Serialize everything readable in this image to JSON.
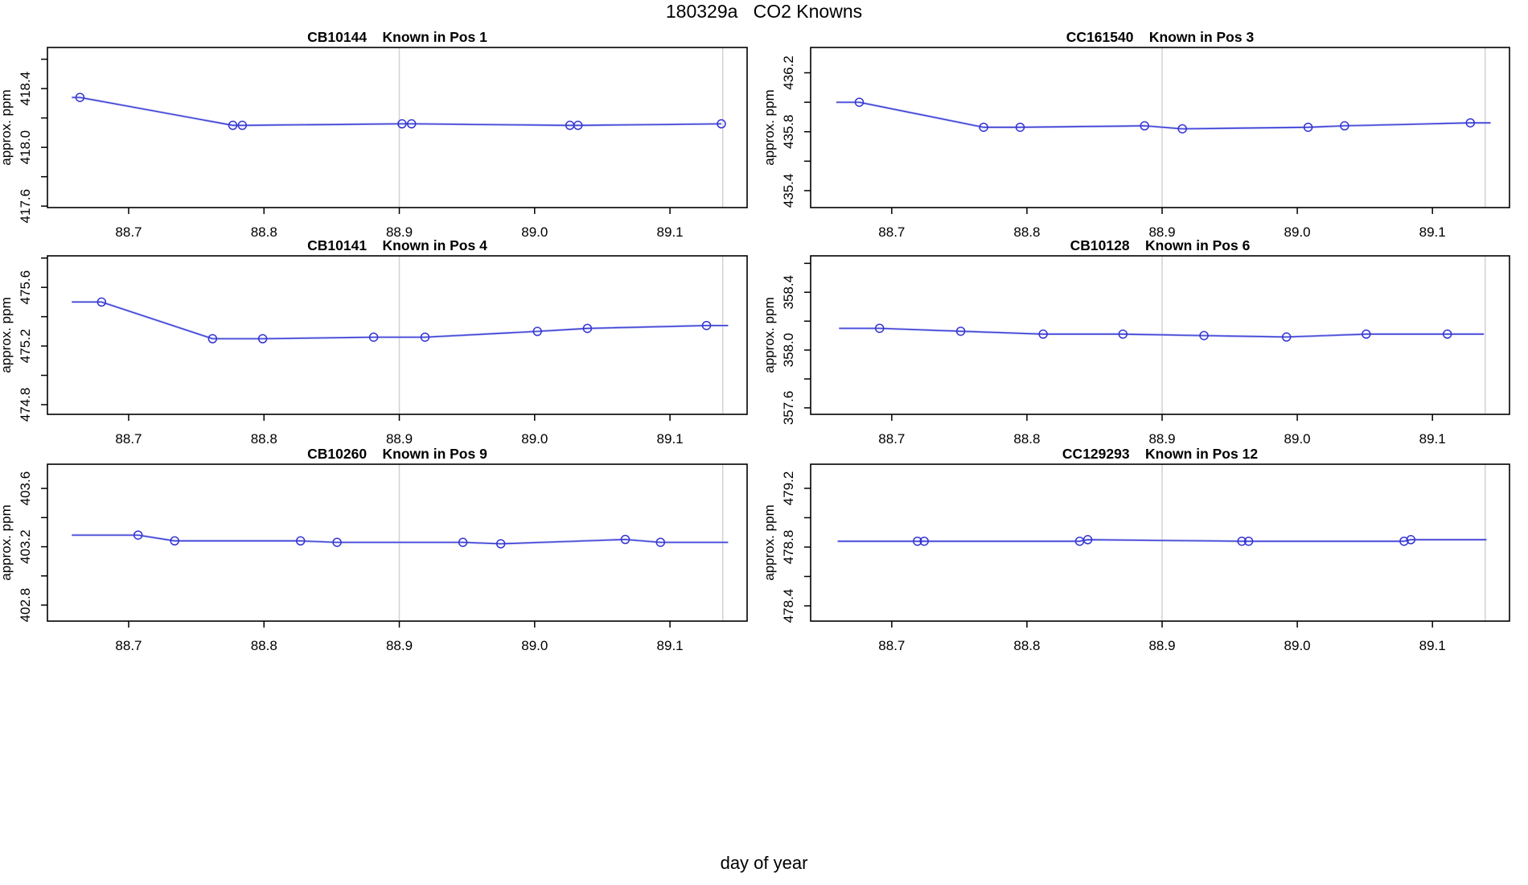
{
  "title": "180329a   CO2 Knowns",
  "xlabel": "day of year",
  "colors": {
    "series": "#3434d3",
    "series_halo": "#aab2ef",
    "vline": "#d2d2d2",
    "box": "#000000"
  },
  "chart_data": [
    {
      "type": "line",
      "sample_id": "CB10144",
      "position": "Known in Pos 1",
      "title": "CB10144    Known in Pos 1",
      "ylabel": "approx. ppm",
      "xlim": [
        88.64,
        89.157
      ],
      "ylim": [
        417.59,
        418.68
      ],
      "xticks": [
        [
          88.7,
          "88.7"
        ],
        [
          88.8,
          "88.8"
        ],
        [
          88.9,
          "88.9"
        ],
        [
          89.0,
          "89.0"
        ],
        [
          89.1,
          "89.1"
        ]
      ],
      "yticks": [
        [
          417.6,
          "417.6"
        ],
        [
          417.8,
          ""
        ],
        [
          418.0,
          "418.0"
        ],
        [
          418.2,
          ""
        ],
        [
          418.4,
          "418.4"
        ],
        [
          418.6,
          ""
        ]
      ],
      "vlines": [
        88.9,
        89.139
      ],
      "x": [
        88.664,
        88.777,
        88.784,
        88.902,
        88.909,
        89.026,
        89.032,
        89.138
      ],
      "y": [
        418.34,
        418.15,
        418.15,
        418.16,
        418.16,
        418.15,
        418.15,
        418.16
      ],
      "lead_x": 88.658,
      "trail_x": null
    },
    {
      "type": "line",
      "sample_id": "CC161540",
      "position": "Known in Pos 3",
      "title": "CC161540    Known in Pos 3",
      "ylabel": "approx. ppm",
      "xlim": [
        88.64,
        89.157
      ],
      "ylim": [
        435.285,
        436.372
      ],
      "xticks": [
        [
          88.7,
          "88.7"
        ],
        [
          88.8,
          "88.8"
        ],
        [
          88.9,
          "88.9"
        ],
        [
          89.0,
          "89.0"
        ],
        [
          89.1,
          "89.1"
        ]
      ],
      "yticks": [
        [
          435.4,
          "435.4"
        ],
        [
          435.6,
          ""
        ],
        [
          435.8,
          "435.8"
        ],
        [
          436.0,
          ""
        ],
        [
          436.2,
          "436.2"
        ]
      ],
      "vlines": [
        88.9,
        89.139
      ],
      "x": [
        88.676,
        88.768,
        88.795,
        88.887,
        88.915,
        89.008,
        89.035,
        89.128
      ],
      "y": [
        436.0,
        435.83,
        435.83,
        435.84,
        435.82,
        435.83,
        435.84,
        435.86
      ],
      "lead_x": 88.659,
      "trail_x": 89.143
    },
    {
      "type": "line",
      "sample_id": "CB10141",
      "position": "Known in Pos 4",
      "title": "CB10141    Known in Pos 4",
      "ylabel": "approx. ppm",
      "xlim": [
        88.64,
        89.157
      ],
      "ylim": [
        474.734,
        475.815
      ],
      "xticks": [
        [
          88.7,
          "88.7"
        ],
        [
          88.8,
          "88.8"
        ],
        [
          88.9,
          "88.9"
        ],
        [
          89.0,
          "89.0"
        ],
        [
          89.1,
          "89.1"
        ]
      ],
      "yticks": [
        [
          474.8,
          "474.8"
        ],
        [
          475.0,
          ""
        ],
        [
          475.2,
          "475.2"
        ],
        [
          475.4,
          ""
        ],
        [
          475.6,
          "475.6"
        ],
        [
          475.8,
          ""
        ]
      ],
      "vlines": [
        88.9,
        89.139
      ],
      "x": [
        88.68,
        88.762,
        88.799,
        88.881,
        88.919,
        89.002,
        89.039,
        89.127
      ],
      "y": [
        475.5,
        475.25,
        475.25,
        475.26,
        475.26,
        475.3,
        475.32,
        475.34
      ],
      "lead_x": 88.658,
      "trail_x": 89.143
    },
    {
      "type": "line",
      "sample_id": "CB10128",
      "position": "Known in Pos 6",
      "title": "CB10128    Known in Pos 6",
      "ylabel": "approx. ppm",
      "xlim": [
        88.64,
        89.157
      ],
      "ylim": [
        357.555,
        358.652
      ],
      "xticks": [
        [
          88.7,
          "88.7"
        ],
        [
          88.8,
          "88.8"
        ],
        [
          88.9,
          "88.9"
        ],
        [
          89.0,
          "89.0"
        ],
        [
          89.1,
          "89.1"
        ]
      ],
      "yticks": [
        [
          357.6,
          "357.6"
        ],
        [
          357.8,
          ""
        ],
        [
          358.0,
          "358.0"
        ],
        [
          358.2,
          ""
        ],
        [
          358.4,
          "358.4"
        ],
        [
          358.6,
          ""
        ]
      ],
      "vlines": [
        88.9,
        89.139
      ],
      "x": [
        88.691,
        88.751,
        88.812,
        88.871,
        88.931,
        88.992,
        89.051,
        89.111
      ],
      "y": [
        358.15,
        358.13,
        358.11,
        358.11,
        358.1,
        358.09,
        358.11,
        358.11
      ],
      "lead_x": 88.661,
      "trail_x": 89.138
    },
    {
      "type": "line",
      "sample_id": "CB10260",
      "position": "Known in Pos 9",
      "title": "CB10260    Known in Pos 9",
      "ylabel": "approx. ppm",
      "xlim": [
        88.64,
        89.157
      ],
      "ylim": [
        402.69,
        403.766
      ],
      "xticks": [
        [
          88.7,
          "88.7"
        ],
        [
          88.8,
          "88.8"
        ],
        [
          88.9,
          "88.9"
        ],
        [
          89.0,
          "89.0"
        ],
        [
          89.1,
          "89.1"
        ]
      ],
      "yticks": [
        [
          402.8,
          "402.8"
        ],
        [
          403.0,
          ""
        ],
        [
          403.2,
          "403.2"
        ],
        [
          403.4,
          ""
        ],
        [
          403.6,
          "403.6"
        ]
      ],
      "vlines": [
        88.9,
        89.139
      ],
      "x": [
        88.707,
        88.734,
        88.827,
        88.854,
        88.947,
        88.975,
        89.067,
        89.093
      ],
      "y": [
        403.28,
        403.24,
        403.24,
        403.23,
        403.23,
        403.22,
        403.25,
        403.23
      ],
      "lead_x": 88.658,
      "trail_x": 89.143
    },
    {
      "type": "line",
      "sample_id": "CC129293",
      "position": "Known in Pos 12",
      "title": "CC129293    Known in Pos 12",
      "ylabel": "approx. ppm",
      "xlim": [
        88.64,
        89.157
      ],
      "ylim": [
        478.296,
        479.364
      ],
      "xticks": [
        [
          88.7,
          "88.7"
        ],
        [
          88.8,
          "88.8"
        ],
        [
          88.9,
          "88.9"
        ],
        [
          89.0,
          "89.0"
        ],
        [
          89.1,
          "89.1"
        ]
      ],
      "yticks": [
        [
          478.4,
          "478.4"
        ],
        [
          478.6,
          ""
        ],
        [
          478.8,
          "478.8"
        ],
        [
          479.0,
          ""
        ],
        [
          479.2,
          "479.2"
        ]
      ],
      "vlines": [
        88.9,
        89.139
      ],
      "x": [
        88.719,
        88.724,
        88.839,
        88.845,
        88.959,
        88.964,
        89.079,
        89.084
      ],
      "y": [
        478.84,
        478.84,
        478.84,
        478.85,
        478.84,
        478.84,
        478.84,
        478.85
      ],
      "lead_x": 88.66,
      "trail_x": 89.14
    }
  ]
}
